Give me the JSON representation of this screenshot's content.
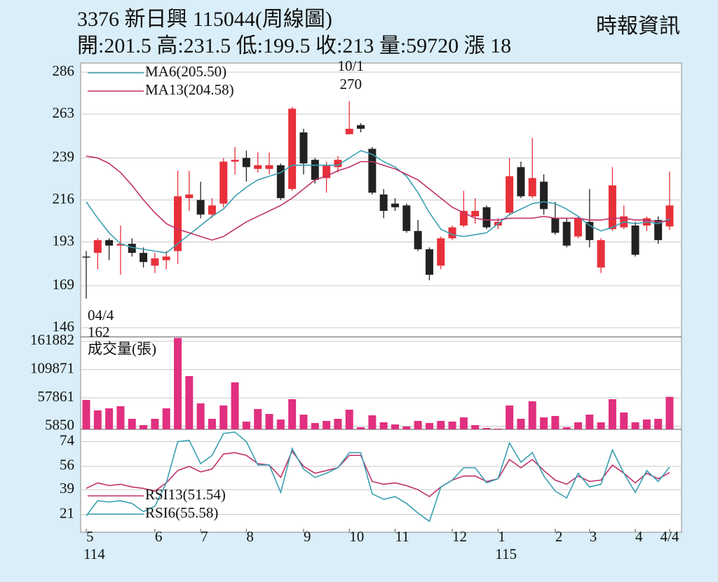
{
  "header": {
    "title": "3376 新日興 115044(周線圖)",
    "source": "時報資訊",
    "summary": "開:201.5 高:231.5 低:199.5 收:213 量:59720 漲 18"
  },
  "chart_data": [
    {
      "type": "candlestick",
      "open": [
        185,
        187,
        194,
        191,
        192,
        187,
        180,
        183,
        188,
        217,
        216,
        208,
        214,
        237,
        239,
        233,
        233,
        235,
        222,
        253,
        238,
        228,
        234,
        252,
        257,
        244,
        219,
        214,
        213,
        199,
        189,
        180,
        195,
        202,
        207,
        212,
        202,
        209,
        234,
        218,
        226,
        206,
        204,
        196,
        204,
        179,
        200,
        201,
        202,
        202,
        205,
        201.5
      ],
      "high": [
        188,
        195,
        195,
        202,
        195,
        190,
        187,
        188,
        232,
        232,
        226,
        217,
        239,
        245,
        243,
        242,
        242,
        236,
        267,
        255,
        239,
        237,
        240,
        270,
        258,
        245,
        222,
        217,
        214,
        205,
        190,
        196,
        202,
        221,
        217,
        213,
        206,
        239,
        237,
        250,
        230,
        215,
        206,
        207,
        222,
        195,
        234,
        213,
        204,
        207,
        207,
        231.5
      ],
      "low": [
        162,
        178,
        183,
        175,
        185,
        179,
        176,
        178,
        181,
        210,
        206,
        206,
        212,
        230,
        226,
        231,
        230,
        216,
        221,
        230,
        225,
        220,
        231,
        252,
        253,
        219,
        206,
        210,
        198,
        188,
        172,
        178,
        194,
        201,
        203,
        200,
        200,
        208,
        217,
        217,
        208,
        197,
        190,
        195,
        190,
        176,
        199,
        200,
        185,
        199,
        192,
        199.5
      ],
      "close": [
        185,
        194,
        191,
        192,
        187,
        182,
        184,
        185,
        218,
        219,
        208,
        213,
        237,
        238,
        234,
        235,
        235,
        217,
        266,
        236,
        227,
        235,
        238,
        255,
        255,
        220,
        210,
        212,
        199,
        189,
        175,
        195,
        201,
        210,
        210,
        201,
        204,
        229,
        218,
        228,
        211,
        198,
        191,
        206,
        194,
        194,
        224,
        207,
        186,
        206,
        194,
        213
      ],
      "up_color": "#e8303a",
      "down_color": "#222222",
      "series": [
        {
          "name": "MA6(205.50)",
          "color": "#3a9fb2",
          "values": [
            215,
            206,
            198,
            192,
            190,
            189,
            188,
            187,
            192,
            197,
            202,
            207,
            211,
            218,
            223,
            227,
            229,
            231,
            235,
            235,
            235,
            235,
            235,
            239,
            243,
            241,
            237,
            234,
            229,
            220,
            209,
            200,
            197,
            196,
            197,
            198,
            203,
            208,
            211,
            214,
            215,
            214,
            211,
            207,
            202,
            199,
            201,
            204,
            203,
            204,
            203,
            205.5
          ]
        },
        {
          "name": "MA13(204.58)",
          "color": "#c0306a",
          "values": [
            240,
            239,
            236,
            231,
            224,
            216,
            209,
            203,
            200,
            198,
            196,
            194,
            196,
            200,
            204,
            207,
            210,
            213,
            217,
            222,
            227,
            229,
            232,
            234,
            237,
            237,
            235,
            233,
            230,
            227,
            222,
            217,
            212,
            209,
            206,
            205,
            205,
            206,
            206,
            206,
            207,
            206,
            206,
            206,
            205,
            205,
            206,
            206,
            205,
            205,
            204,
            204.58
          ]
        }
      ],
      "high_note": {
        "date": "10/1",
        "value": 270
      },
      "low_note": {
        "date": "04/4",
        "value": 162
      },
      "ylim": [
        141,
        291
      ],
      "yticks": [
        286,
        263,
        239,
        216,
        193,
        169,
        146
      ],
      "grid": true
    },
    {
      "type": "bar",
      "title": "成交量(張)",
      "color": "#e0307f",
      "values": [
        54100,
        34800,
        38600,
        42500,
        19300,
        7700,
        19300,
        38600,
        168000,
        97900,
        47700,
        19300,
        43800,
        86300,
        14200,
        37400,
        28300,
        18000,
        55400,
        27000,
        11600,
        15500,
        19300,
        36100,
        3900,
        25800,
        12900,
        9000,
        5200,
        15500,
        11600,
        15500,
        14200,
        21900,
        7700,
        2600,
        1300,
        43800,
        19300,
        51500,
        21900,
        24500,
        3900,
        12900,
        27000,
        12900,
        55400,
        30900,
        12900,
        18000,
        19300,
        59720
      ],
      "ylim": [
        0,
        170000
      ],
      "yticks": [
        161882,
        109871,
        57861,
        5850
      ],
      "grid": true
    },
    {
      "type": "line",
      "categories": [
        "5",
        null,
        null,
        null,
        null,
        null,
        "6",
        null,
        null,
        null,
        "7",
        null,
        null,
        null,
        "8",
        null,
        null,
        null,
        null,
        "9",
        null,
        null,
        null,
        "10",
        null,
        null,
        null,
        "11",
        null,
        null,
        null,
        null,
        "12",
        null,
        null,
        null,
        "1",
        null,
        null,
        null,
        null,
        "2",
        null,
        null,
        "3",
        null,
        null,
        null,
        "4",
        null,
        null,
        "4/4"
      ],
      "year_labels": [
        "114",
        null,
        null,
        null,
        null,
        null,
        null,
        null,
        null,
        null,
        null,
        null,
        null,
        null,
        null,
        null,
        null,
        null,
        null,
        null,
        null,
        null,
        null,
        null,
        null,
        null,
        null,
        null,
        null,
        null,
        null,
        null,
        null,
        null,
        null,
        null,
        "115",
        null,
        null,
        null,
        null,
        null,
        null,
        null,
        null,
        null,
        null,
        null,
        null,
        null,
        null,
        null
      ],
      "series": [
        {
          "name": "RSI13(51.54)",
          "color": "#c0306a",
          "values": [
            40,
            44,
            42,
            43,
            41,
            40,
            38,
            44,
            53,
            56,
            52,
            54,
            65,
            66,
            64,
            58,
            57,
            48,
            67,
            56,
            51,
            53,
            55,
            64,
            64,
            45,
            43,
            44,
            42,
            39,
            34,
            41,
            46,
            49,
            49,
            45,
            47,
            61,
            55,
            61,
            53,
            46,
            43,
            49,
            45,
            46,
            57,
            51,
            44,
            51,
            47,
            51.54
          ]
        },
        {
          "name": "RSI6(55.58)",
          "color": "#3a9fb2",
          "values": [
            20,
            31,
            30,
            31,
            29,
            23,
            27,
            44,
            74,
            75,
            58,
            64,
            80,
            81,
            74,
            57,
            57,
            37,
            69,
            54,
            48,
            51,
            55,
            66,
            66,
            36,
            32,
            34,
            29,
            22,
            16,
            41,
            46,
            55,
            55,
            44,
            47,
            73,
            59,
            66,
            49,
            38,
            33,
            51,
            41,
            43,
            68,
            51,
            37,
            53,
            45,
            55.58
          ]
        }
      ],
      "ylim": [
        8,
        83
      ],
      "yticks": [
        74,
        56,
        39,
        21
      ],
      "grid": true
    }
  ]
}
